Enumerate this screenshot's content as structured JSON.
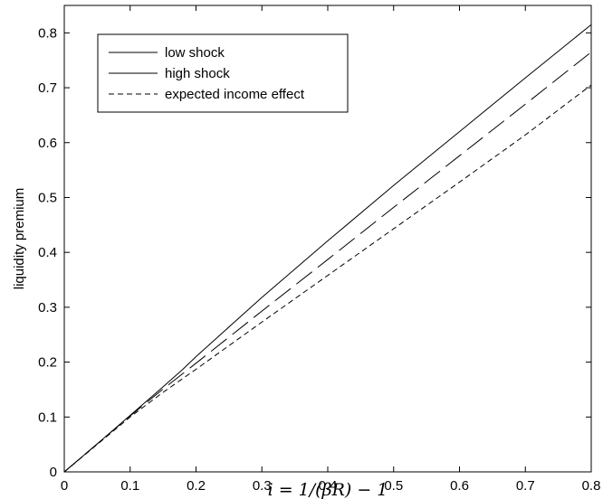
{
  "chart_data": {
    "type": "line",
    "title": "",
    "xlabel": "i = 1/(βR) − 1",
    "ylabel": "liquidity premium",
    "xlim": [
      0,
      0.8
    ],
    "ylim": [
      0,
      0.85
    ],
    "xticks": [
      0,
      0.1,
      0.2,
      0.3,
      0.4,
      0.5,
      0.6,
      0.7,
      0.8
    ],
    "xtick_labels": [
      "0",
      "0.1",
      "0.2",
      "0.3",
      "0.4",
      "0.5",
      "0.6",
      "0.7",
      "0.8"
    ],
    "yticks": [
      0,
      0.1,
      0.2,
      0.3,
      0.4,
      0.5,
      0.6,
      0.7,
      0.8
    ],
    "ytick_labels": [
      "0",
      "0.1",
      "0.2",
      "0.3",
      "0.4",
      "0.5",
      "0.6",
      "0.7",
      "0.8"
    ],
    "grid": false,
    "legend_position": "top-left",
    "series": [
      {
        "name": "low shock",
        "style": "solid",
        "color": "#000000",
        "x": [
          0,
          0.05,
          0.1,
          0.15,
          0.18,
          0.2,
          0.3,
          0.4,
          0.5,
          0.6,
          0.7,
          0.8
        ],
        "y": [
          0,
          0.051,
          0.103,
          0.155,
          0.187,
          0.21,
          0.318,
          0.421,
          0.522,
          0.62,
          0.718,
          0.815
        ]
      },
      {
        "name": "high shock",
        "style": "longdash",
        "color": "#000000",
        "x": [
          0,
          0.05,
          0.1,
          0.15,
          0.2,
          0.3,
          0.4,
          0.5,
          0.6,
          0.7,
          0.8
        ],
        "y": [
          0,
          0.051,
          0.102,
          0.151,
          0.198,
          0.293,
          0.387,
          0.482,
          0.576,
          0.67,
          0.765
        ]
      },
      {
        "name": "expected income effect",
        "style": "dash",
        "color": "#000000",
        "x": [
          0,
          0.05,
          0.1,
          0.15,
          0.2,
          0.3,
          0.4,
          0.5,
          0.6,
          0.7,
          0.8
        ],
        "y": [
          0,
          0.05,
          0.1,
          0.145,
          0.187,
          0.273,
          0.358,
          0.443,
          0.528,
          0.614,
          0.705
        ]
      }
    ]
  }
}
